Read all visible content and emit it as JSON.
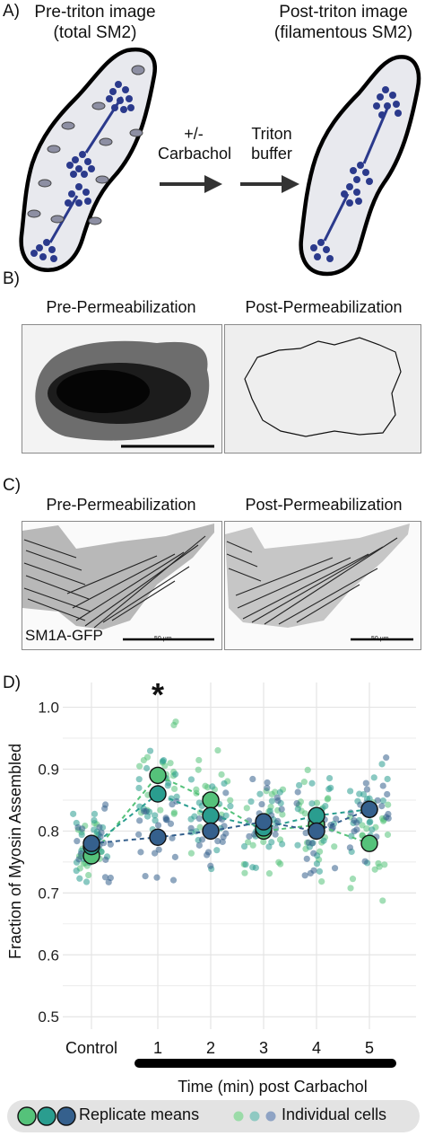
{
  "panel_a": {
    "letter": "A)",
    "pre_title_1": "Pre-triton image",
    "pre_title_2": "(total SM2)",
    "post_title_1": "Post-triton image",
    "post_title_2": "(filamentous SM2)",
    "step1_line1": "+/-",
    "step1_line2": "Carbachol",
    "step2_line1": "Triton",
    "step2_line2": "buffer"
  },
  "panel_b": {
    "letter": "B)",
    "left_title": "Pre-Permeabilization",
    "right_title": "Post-Permeabilization"
  },
  "panel_c": {
    "letter": "C)",
    "left_title": "Pre-Permeabilization",
    "right_title": "Post-Permeabilization",
    "construct_label": "SM1A-GFP",
    "scalebar_label_left": "50 µm",
    "scalebar_label_right": "50 µm"
  },
  "panel_d": {
    "letter": "D)",
    "significance_marker": "*",
    "xaxis_label": "Time (min) post Carbachol",
    "legend_means": "Replicate means",
    "legend_cells": "Individual cells"
  },
  "chart_data": {
    "type": "scatter",
    "ylabel": "Fraction of Myosin Assembled",
    "xlabel": "Time (min) post Carbachol",
    "categories": [
      "Control",
      "1",
      "2",
      "3",
      "4",
      "5"
    ],
    "ylim": [
      0.48,
      1.04
    ],
    "yticks": [
      0.5,
      0.6,
      0.7,
      0.8,
      0.9,
      1.0
    ],
    "ytick_labels": [
      "0.5",
      "0.6",
      "0.7",
      "0.8",
      "0.9",
      "1.0"
    ],
    "grid": true,
    "colors": {
      "rep1": "#55c27a",
      "rep2": "#2a9d8f",
      "rep3": "#35608d"
    },
    "series": [
      {
        "values": [
          0.76,
          0.89,
          0.85,
          0.8,
          0.81,
          0.78
        ]
      },
      {
        "values": [
          0.775,
          0.86,
          0.825,
          0.805,
          0.825,
          0.835
        ]
      },
      {
        "values": [
          0.78,
          0.79,
          0.8,
          0.815,
          0.8,
          0.835
        ]
      }
    ],
    "annotations": [
      {
        "category": "1",
        "text": "*"
      }
    ]
  }
}
